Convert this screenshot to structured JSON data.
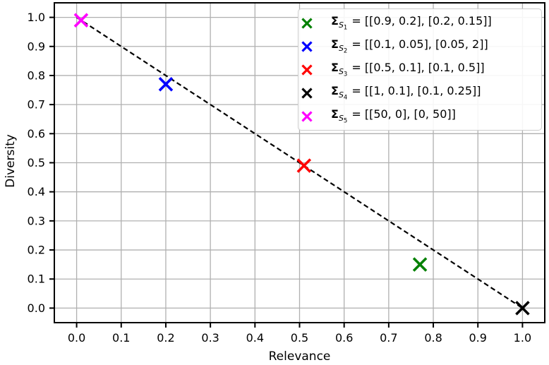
{
  "chart_data": {
    "type": "scatter",
    "title": "",
    "xlabel": "Relevance",
    "ylabel": "Diversity",
    "xlim": [
      -0.05,
      1.05
    ],
    "ylim": [
      -0.05,
      1.05
    ],
    "xticks": [
      "0.0",
      "0.1",
      "0.2",
      "0.3",
      "0.4",
      "0.5",
      "0.6",
      "0.7",
      "0.8",
      "0.9",
      "1.0"
    ],
    "yticks": [
      "0.0",
      "0.1",
      "0.2",
      "0.3",
      "0.4",
      "0.5",
      "0.6",
      "0.7",
      "0.8",
      "0.9",
      "1.0"
    ],
    "grid": true,
    "grid_color": "#b0b0b0",
    "axis_color": "#000000",
    "line": {
      "style": "dashed",
      "color": "#000000",
      "points": [
        [
          0,
          1
        ],
        [
          1,
          0
        ]
      ]
    },
    "points": [
      {
        "name": "S1",
        "x": 0.77,
        "y": 0.15,
        "color": "#008000"
      },
      {
        "name": "S2",
        "x": 0.2,
        "y": 0.77,
        "color": "#0000ff"
      },
      {
        "name": "S3",
        "x": 0.51,
        "y": 0.49,
        "color": "#ff0000"
      },
      {
        "name": "S4",
        "x": 1.0,
        "y": 0.0,
        "color": "#000000"
      },
      {
        "name": "S5",
        "x": 0.01,
        "y": 0.99,
        "color": "#ff00ff"
      }
    ],
    "legend": {
      "position": "upper right",
      "entries": [
        {
          "symbol": "Σ",
          "sub": "S",
          "index": "1",
          "value": "= [[0.9, 0.2], [0.2, 0.15]]",
          "color": "#008000"
        },
        {
          "symbol": "Σ",
          "sub": "S",
          "index": "2",
          "value": "= [[0.1, 0.05], [0.05, 2]]",
          "color": "#0000ff"
        },
        {
          "symbol": "Σ",
          "sub": "S",
          "index": "3",
          "value": "= [[0.5, 0.1], [0.1, 0.5]]",
          "color": "#ff0000"
        },
        {
          "symbol": "Σ",
          "sub": "S",
          "index": "4",
          "value": "= [[1, 0.1], [0.1, 0.25]]",
          "color": "#000000"
        },
        {
          "symbol": "Σ",
          "sub": "S",
          "index": "5",
          "value": "= [[50, 0], [0, 50]]",
          "color": "#ff00ff"
        }
      ]
    }
  }
}
